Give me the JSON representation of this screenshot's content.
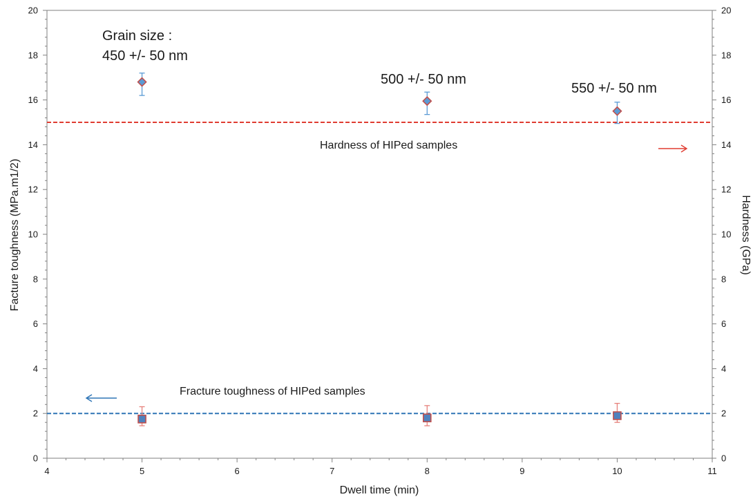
{
  "chart_data": {
    "type": "scatter",
    "xlabel": "Dwell time (min)",
    "ylabel_left": "Facture toughness (MPa.m1/2)",
    "ylabel_right": "Hardness (GPa)",
    "xlim": [
      4,
      11
    ],
    "ylim_left": [
      0,
      20
    ],
    "ylim_right": [
      0,
      20
    ],
    "x_ticks": [
      4,
      5,
      6,
      7,
      8,
      9,
      10,
      11
    ],
    "y_ticks": [
      0,
      2,
      4,
      6,
      8,
      10,
      12,
      14,
      16,
      18,
      20
    ],
    "grid": false,
    "series": [
      {
        "axis": "right",
        "marker": "diamond",
        "color": "#5b9bd5",
        "edge_color": "#c0504d",
        "error_color": "#5b9bd5",
        "x": [
          5,
          8,
          10
        ],
        "values": [
          16.8,
          15.95,
          15.5
        ],
        "err_low": [
          0.6,
          0.6,
          0.55
        ],
        "err_high": [
          0.4,
          0.4,
          0.4
        ]
      },
      {
        "axis": "left",
        "marker": "square",
        "color": "#4f81bd",
        "edge_color": "#c0504d",
        "error_color": "#e6817b",
        "x": [
          5,
          8,
          10
        ],
        "values": [
          1.75,
          1.8,
          1.9
        ],
        "err_low": [
          0.3,
          0.35,
          0.3
        ],
        "err_high": [
          0.55,
          0.55,
          0.55
        ]
      }
    ],
    "reference_lines": [
      {
        "axis": "right",
        "y": 15,
        "color": "#e03c31",
        "label": "Hardness of HIPed samples"
      },
      {
        "axis": "left",
        "y": 2,
        "color": "#2e75b6",
        "label": "Fracture toughness of HIPed samples"
      }
    ],
    "annotations": {
      "grain_size_title": "Grain size :",
      "grain_size_1": "450 +/- 50 nm",
      "grain_size_2": "500 +/- 50 nm",
      "grain_size_3": "550 +/- 50 nm"
    },
    "arrows": {
      "hardness_direction": "right",
      "hardness_color": "#e03c31",
      "toughness_direction": "left",
      "toughness_color": "#2e75b6"
    },
    "axis_color": "#7f7f7f"
  }
}
